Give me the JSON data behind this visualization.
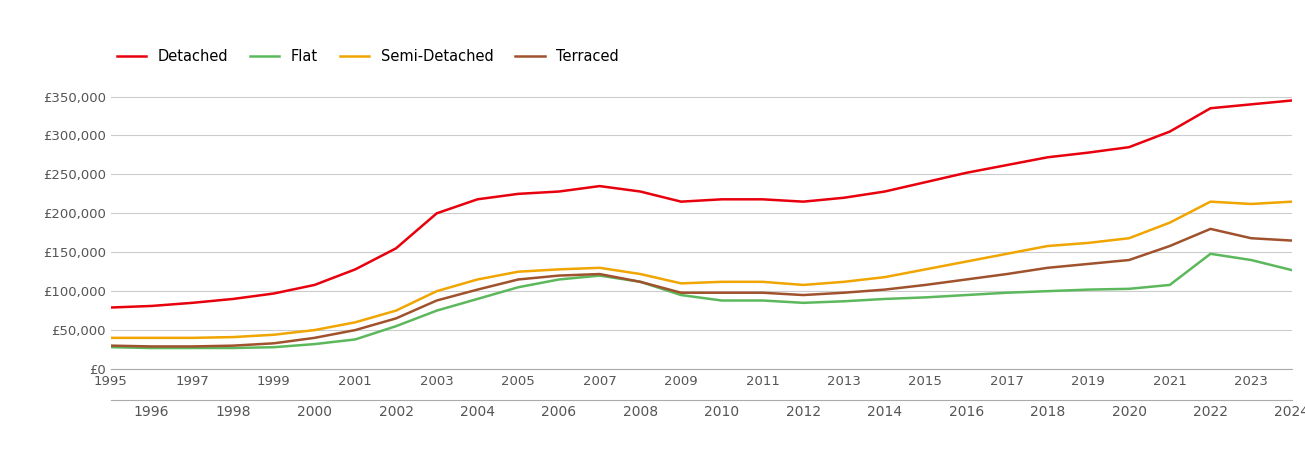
{
  "series": {
    "Detached": {
      "color": "#e8000d",
      "years": [
        1995,
        1996,
        1997,
        1998,
        1999,
        2000,
        2001,
        2002,
        2003,
        2004,
        2005,
        2006,
        2007,
        2008,
        2009,
        2010,
        2011,
        2012,
        2013,
        2014,
        2015,
        2016,
        2017,
        2018,
        2019,
        2020,
        2021,
        2022,
        2023,
        2024
      ],
      "values": [
        79000,
        81000,
        85000,
        90000,
        97000,
        108000,
        128000,
        155000,
        200000,
        218000,
        225000,
        228000,
        235000,
        228000,
        215000,
        218000,
        218000,
        215000,
        220000,
        228000,
        240000,
        252000,
        262000,
        272000,
        278000,
        285000,
        305000,
        335000,
        340000,
        345000
      ]
    },
    "Flat": {
      "color": "#5cb85c",
      "years": [
        1995,
        1996,
        1997,
        1998,
        1999,
        2000,
        2001,
        2002,
        2003,
        2004,
        2005,
        2006,
        2007,
        2008,
        2009,
        2010,
        2011,
        2012,
        2013,
        2014,
        2015,
        2016,
        2017,
        2018,
        2019,
        2020,
        2021,
        2022,
        2023,
        2024
      ],
      "values": [
        28000,
        27000,
        27000,
        27000,
        28000,
        32000,
        38000,
        55000,
        75000,
        90000,
        105000,
        115000,
        120000,
        112000,
        95000,
        88000,
        88000,
        85000,
        87000,
        90000,
        92000,
        95000,
        98000,
        100000,
        102000,
        103000,
        108000,
        148000,
        140000,
        127000
      ]
    },
    "Semi-Detached": {
      "color": "#f0a500",
      "years": [
        1995,
        1996,
        1997,
        1998,
        1999,
        2000,
        2001,
        2002,
        2003,
        2004,
        2005,
        2006,
        2007,
        2008,
        2009,
        2010,
        2011,
        2012,
        2013,
        2014,
        2015,
        2016,
        2017,
        2018,
        2019,
        2020,
        2021,
        2022,
        2023,
        2024
      ],
      "values": [
        40000,
        40000,
        40000,
        41000,
        44000,
        50000,
        60000,
        75000,
        100000,
        115000,
        125000,
        128000,
        130000,
        122000,
        110000,
        112000,
        112000,
        108000,
        112000,
        118000,
        128000,
        138000,
        148000,
        158000,
        162000,
        168000,
        188000,
        215000,
        212000,
        215000
      ]
    },
    "Terraced": {
      "color": "#a0522d",
      "years": [
        1995,
        1996,
        1997,
        1998,
        1999,
        2000,
        2001,
        2002,
        2003,
        2004,
        2005,
        2006,
        2007,
        2008,
        2009,
        2010,
        2011,
        2012,
        2013,
        2014,
        2015,
        2016,
        2017,
        2018,
        2019,
        2020,
        2021,
        2022,
        2023,
        2024
      ],
      "values": [
        30000,
        29000,
        29000,
        30000,
        33000,
        40000,
        50000,
        65000,
        88000,
        102000,
        115000,
        120000,
        122000,
        112000,
        98000,
        98000,
        98000,
        95000,
        98000,
        102000,
        108000,
        115000,
        122000,
        130000,
        135000,
        140000,
        158000,
        180000,
        168000,
        165000
      ]
    }
  },
  "ylim": [
    0,
    370000
  ],
  "yticks": [
    0,
    50000,
    100000,
    150000,
    200000,
    250000,
    300000,
    350000
  ],
  "xlim": [
    1995,
    2024
  ],
  "background_color": "#ffffff",
  "grid_color": "#cccccc",
  "tick_color": "#555555",
  "spine_color": "#aaaaaa"
}
